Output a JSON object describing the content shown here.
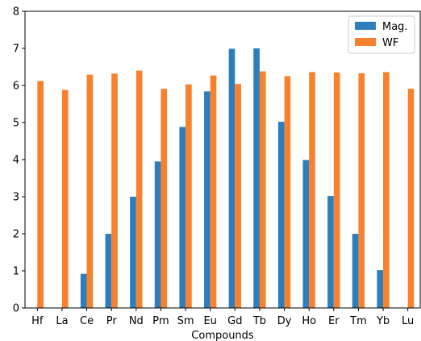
{
  "chart_data": {
    "type": "bar",
    "title": "",
    "xlabel": "Compounds",
    "ylabel": "",
    "ylim": [
      0,
      8
    ],
    "yticks": [
      "0",
      "1",
      "2",
      "3",
      "4",
      "5",
      "6",
      "7",
      "8"
    ],
    "grid": false,
    "legend_position": "top-right",
    "categories": [
      "Hf",
      "La",
      "Ce",
      "Pr",
      "Nd",
      "Pm",
      "Sm",
      "Eu",
      "Gd",
      "Tb",
      "Dy",
      "Ho",
      "Er",
      "Tm",
      "Yb",
      "Lu"
    ],
    "series": [
      {
        "name": "Mag.",
        "color": "#2e7ebc",
        "values": [
          0,
          0,
          0.92,
          2.0,
          3.0,
          3.95,
          4.88,
          5.84,
          6.99,
          7.0,
          5.02,
          3.99,
          3.02,
          2.0,
          1.02,
          0
        ]
      },
      {
        "name": "WF",
        "color": "#f7812c",
        "values": [
          6.12,
          5.88,
          6.29,
          6.32,
          6.4,
          5.91,
          6.03,
          6.27,
          6.04,
          6.38,
          6.25,
          6.36,
          6.35,
          6.33,
          6.36,
          5.91
        ]
      }
    ]
  }
}
